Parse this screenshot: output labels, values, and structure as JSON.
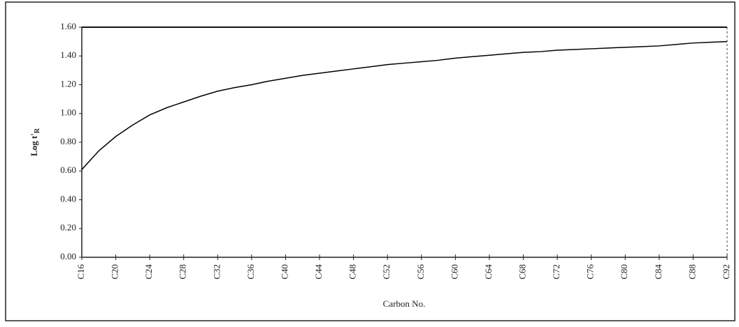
{
  "chart_data": {
    "type": "line",
    "xlabel": "Carbon No.",
    "ylabel": "Log t'",
    "ylabel_subscript": "R",
    "x": [
      16,
      18,
      20,
      22,
      24,
      26,
      28,
      30,
      32,
      34,
      36,
      38,
      40,
      42,
      44,
      46,
      48,
      50,
      52,
      54,
      56,
      58,
      60,
      62,
      64,
      66,
      68,
      70,
      72,
      74,
      76,
      78,
      80,
      82,
      84,
      86,
      88,
      90,
      92
    ],
    "series": [
      {
        "color": "#000000",
        "values": [
          0.61,
          0.74,
          0.84,
          0.92,
          0.99,
          1.04,
          1.08,
          1.12,
          1.155,
          1.18,
          1.2,
          1.225,
          1.245,
          1.265,
          1.28,
          1.295,
          1.31,
          1.325,
          1.34,
          1.35,
          1.36,
          1.37,
          1.385,
          1.395,
          1.405,
          1.415,
          1.425,
          1.43,
          1.44,
          1.445,
          1.45,
          1.455,
          1.46,
          1.465,
          1.47,
          1.48,
          1.49,
          1.495,
          1.5
        ]
      }
    ],
    "xlim": [
      16,
      92
    ],
    "xticks": [
      {
        "value": 16,
        "label": "C16"
      },
      {
        "value": 20,
        "label": "C20"
      },
      {
        "value": 24,
        "label": "C24"
      },
      {
        "value": 28,
        "label": "C28"
      },
      {
        "value": 32,
        "label": "C32"
      },
      {
        "value": 36,
        "label": "C36"
      },
      {
        "value": 40,
        "label": "C40"
      },
      {
        "value": 44,
        "label": "C44"
      },
      {
        "value": 48,
        "label": "C48"
      },
      {
        "value": 52,
        "label": "C52"
      },
      {
        "value": 56,
        "label": "C56"
      },
      {
        "value": 60,
        "label": "C60"
      },
      {
        "value": 64,
        "label": "C64"
      },
      {
        "value": 68,
        "label": "C68"
      },
      {
        "value": 72,
        "label": "C72"
      },
      {
        "value": 76,
        "label": "C76"
      },
      {
        "value": 80,
        "label": "C80"
      },
      {
        "value": 84,
        "label": "C84"
      },
      {
        "value": 88,
        "label": "C88"
      },
      {
        "value": 92,
        "label": "C92"
      }
    ],
    "ylim": [
      0,
      1.6
    ],
    "yticks": [
      {
        "value": 0,
        "label": "0.00"
      },
      {
        "value": 0.2,
        "label": "0.20"
      },
      {
        "value": 0.4,
        "label": "0.40"
      },
      {
        "value": 0.6,
        "label": "0.60"
      },
      {
        "value": 0.8,
        "label": "0.80"
      },
      {
        "value": 1,
        "label": "1.00"
      },
      {
        "value": 1.2,
        "label": "1.20"
      },
      {
        "value": 1.4,
        "label": "1.40"
      },
      {
        "value": 1.6,
        "label": "1.60"
      }
    ]
  }
}
